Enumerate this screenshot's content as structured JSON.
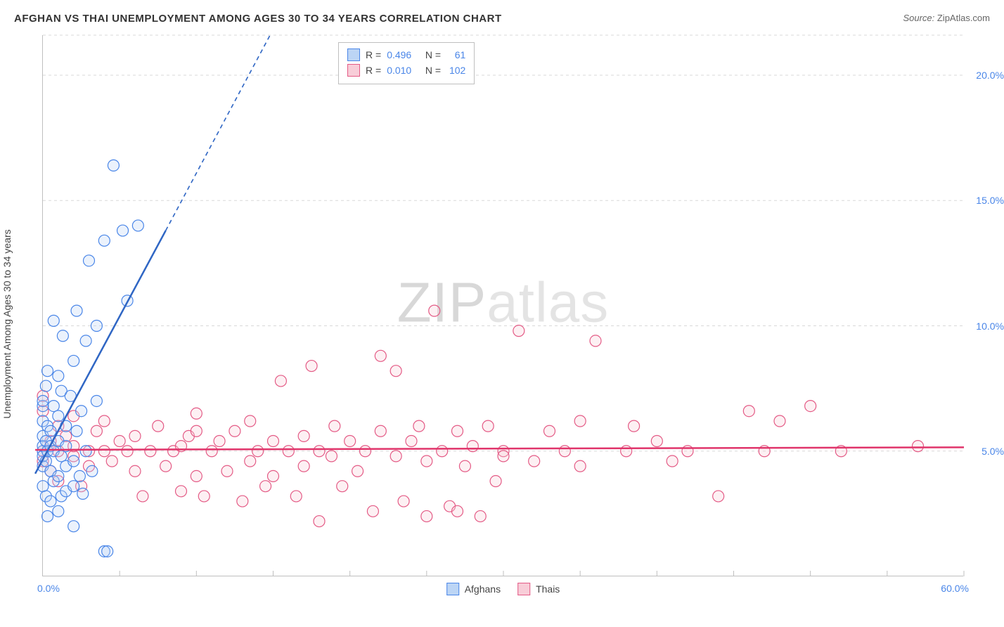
{
  "header": {
    "title": "AFGHAN VS THAI UNEMPLOYMENT AMONG AGES 30 TO 34 YEARS CORRELATION CHART",
    "source_prefix": "Source: ",
    "source_name": "ZipAtlas.com"
  },
  "watermark": {
    "zip": "ZIP",
    "atlas": "atlas"
  },
  "chart": {
    "type": "scatter",
    "ylabel": "Unemployment Among Ages 30 to 34 years",
    "background_color": "#ffffff",
    "axis_color": "#bfbfbf",
    "grid_color": "#d9d9d9",
    "grid_dash": "4 4",
    "tick_label_color": "#4a86e8",
    "xlim": [
      0,
      60
    ],
    "ylim": [
      0,
      21.6
    ],
    "x_ticks_minor_step": 5,
    "x_ticks_labels": [
      {
        "value": 0,
        "label": "0.0%"
      },
      {
        "value": 60,
        "label": "60.0%"
      }
    ],
    "y_gridlines": [
      5,
      10,
      15,
      20,
      21.6
    ],
    "y_ticks_labels": [
      {
        "value": 5,
        "label": "5.0%"
      },
      {
        "value": 10,
        "label": "10.0%"
      },
      {
        "value": 15,
        "label": "15.0%"
      },
      {
        "value": 20,
        "label": "20.0%"
      }
    ],
    "marker_radius": 8,
    "marker_stroke_width": 1.2,
    "marker_fill_opacity": 0.3,
    "trend_line_width": 2.5,
    "trend_dash": "6 5"
  },
  "stats_legend": {
    "rows": [
      {
        "swatch_fill": "#bcd5f5",
        "swatch_stroke": "#4a86e8",
        "r_label": "R = ",
        "r_value": "0.496",
        "n_label": "   N = ",
        "n_value": "  61"
      },
      {
        "swatch_fill": "#f8cdd8",
        "swatch_stroke": "#e45b86",
        "r_label": "R = ",
        "r_value": "0.010",
        "n_label": "   N = ",
        "n_value": "102"
      }
    ]
  },
  "series_legend": {
    "items": [
      {
        "swatch_fill": "#bcd5f5",
        "swatch_stroke": "#4a86e8",
        "label": "Afghans"
      },
      {
        "swatch_fill": "#f8cdd8",
        "swatch_stroke": "#e45b86",
        "label": "Thais"
      }
    ]
  },
  "series": {
    "afghans": {
      "fill": "#bcd5f5",
      "stroke": "#4a86e8",
      "trend_color": "#2f66c4",
      "trend_solid": {
        "x1": -0.5,
        "y1": 4.1,
        "x2": 8.0,
        "y2": 13.8
      },
      "trend_dash": {
        "x1": 8.0,
        "y1": 13.8,
        "x2": 14.8,
        "y2": 21.6
      },
      "points": [
        [
          0.0,
          5.0
        ],
        [
          0.0,
          5.6
        ],
        [
          0.0,
          6.8
        ],
        [
          0.0,
          4.4
        ],
        [
          0.0,
          5.2
        ],
        [
          0.0,
          6.2
        ],
        [
          0.0,
          7.0
        ],
        [
          0.0,
          4.8
        ],
        [
          0.0,
          3.6
        ],
        [
          0.2,
          7.6
        ],
        [
          0.2,
          5.4
        ],
        [
          0.2,
          4.6
        ],
        [
          0.2,
          3.2
        ],
        [
          0.3,
          6.0
        ],
        [
          0.3,
          8.2
        ],
        [
          0.3,
          5.0
        ],
        [
          0.3,
          2.4
        ],
        [
          0.5,
          5.8
        ],
        [
          0.5,
          5.2
        ],
        [
          0.5,
          4.2
        ],
        [
          0.5,
          3.0
        ],
        [
          0.7,
          10.2
        ],
        [
          0.7,
          6.8
        ],
        [
          0.7,
          3.8
        ],
        [
          0.7,
          5.0
        ],
        [
          1.0,
          8.0
        ],
        [
          1.0,
          6.4
        ],
        [
          1.0,
          5.4
        ],
        [
          1.0,
          4.0
        ],
        [
          1.0,
          2.6
        ],
        [
          1.2,
          7.4
        ],
        [
          1.2,
          3.2
        ],
        [
          1.2,
          4.8
        ],
        [
          1.3,
          9.6
        ],
        [
          1.5,
          6.0
        ],
        [
          1.5,
          5.2
        ],
        [
          1.5,
          3.4
        ],
        [
          1.5,
          4.4
        ],
        [
          1.8,
          7.2
        ],
        [
          2.0,
          8.6
        ],
        [
          2.0,
          4.6
        ],
        [
          2.0,
          3.6
        ],
        [
          2.0,
          2.0
        ],
        [
          2.2,
          5.8
        ],
        [
          2.2,
          10.6
        ],
        [
          2.4,
          4.0
        ],
        [
          2.5,
          6.6
        ],
        [
          2.6,
          3.3
        ],
        [
          2.8,
          9.4
        ],
        [
          2.8,
          5.0
        ],
        [
          3.0,
          12.6
        ],
        [
          3.2,
          4.2
        ],
        [
          3.5,
          10.0
        ],
        [
          3.5,
          7.0
        ],
        [
          4.0,
          13.4
        ],
        [
          4.0,
          1.0
        ],
        [
          4.2,
          1.0
        ],
        [
          4.6,
          16.4
        ],
        [
          5.2,
          13.8
        ],
        [
          5.5,
          11.0
        ],
        [
          6.2,
          14.0
        ]
      ]
    },
    "thais": {
      "fill": "#f8cdd8",
      "stroke": "#e45b86",
      "trend_color": "#e0356b",
      "trend_solid": {
        "x1": -0.5,
        "y1": 5.05,
        "x2": 60.0,
        "y2": 5.15
      },
      "points": [
        [
          0.0,
          5.0
        ],
        [
          0.0,
          6.6
        ],
        [
          0.0,
          4.6
        ],
        [
          0.0,
          7.2
        ],
        [
          0.5,
          5.4
        ],
        [
          0.5,
          4.2
        ],
        [
          1.0,
          6.0
        ],
        [
          1.0,
          5.0
        ],
        [
          1.0,
          3.8
        ],
        [
          1.5,
          5.6
        ],
        [
          2.0,
          6.4
        ],
        [
          2.0,
          4.8
        ],
        [
          2.0,
          5.2
        ],
        [
          2.5,
          3.6
        ],
        [
          3.0,
          5.0
        ],
        [
          3.0,
          4.4
        ],
        [
          3.5,
          5.8
        ],
        [
          4.0,
          5.0
        ],
        [
          4.0,
          6.2
        ],
        [
          4.5,
          4.6
        ],
        [
          5.0,
          5.4
        ],
        [
          5.5,
          5.0
        ],
        [
          6.0,
          4.2
        ],
        [
          6.0,
          5.6
        ],
        [
          6.5,
          3.2
        ],
        [
          7.0,
          5.0
        ],
        [
          7.5,
          6.0
        ],
        [
          8.0,
          4.4
        ],
        [
          8.5,
          5.0
        ],
        [
          9.0,
          5.2
        ],
        [
          9.0,
          3.4
        ],
        [
          9.5,
          5.6
        ],
        [
          10.0,
          4.0
        ],
        [
          10.0,
          6.5
        ],
        [
          10.0,
          5.8
        ],
        [
          10.5,
          3.2
        ],
        [
          11.0,
          5.0
        ],
        [
          11.5,
          5.4
        ],
        [
          12.0,
          4.2
        ],
        [
          12.5,
          5.8
        ],
        [
          13.0,
          3.0
        ],
        [
          13.5,
          6.2
        ],
        [
          13.5,
          4.6
        ],
        [
          14.0,
          5.0
        ],
        [
          14.5,
          3.6
        ],
        [
          15.0,
          5.4
        ],
        [
          15.0,
          4.0
        ],
        [
          15.5,
          7.8
        ],
        [
          16.0,
          5.0
        ],
        [
          16.5,
          3.2
        ],
        [
          17.0,
          5.6
        ],
        [
          17.0,
          4.4
        ],
        [
          17.5,
          8.4
        ],
        [
          18.0,
          5.0
        ],
        [
          18.0,
          2.2
        ],
        [
          18.8,
          4.8
        ],
        [
          19.0,
          6.0
        ],
        [
          19.5,
          3.6
        ],
        [
          20.0,
          5.4
        ],
        [
          20.5,
          4.2
        ],
        [
          21.0,
          5.0
        ],
        [
          21.5,
          2.6
        ],
        [
          22.0,
          5.8
        ],
        [
          22.0,
          8.8
        ],
        [
          23.0,
          4.8
        ],
        [
          23.0,
          8.2
        ],
        [
          23.5,
          3.0
        ],
        [
          24.0,
          5.4
        ],
        [
          24.5,
          6.0
        ],
        [
          25.0,
          4.6
        ],
        [
          25.0,
          2.4
        ],
        [
          25.5,
          10.6
        ],
        [
          26.0,
          5.0
        ],
        [
          26.5,
          2.8
        ],
        [
          27.0,
          5.8
        ],
        [
          27.0,
          2.6
        ],
        [
          27.5,
          4.4
        ],
        [
          28.0,
          5.2
        ],
        [
          28.5,
          2.4
        ],
        [
          29.0,
          6.0
        ],
        [
          29.5,
          3.8
        ],
        [
          30.0,
          5.0
        ],
        [
          30.0,
          4.8
        ],
        [
          31.0,
          9.8
        ],
        [
          32.0,
          4.6
        ],
        [
          33.0,
          5.8
        ],
        [
          34.0,
          5.0
        ],
        [
          35.0,
          6.2
        ],
        [
          35.0,
          4.4
        ],
        [
          36.0,
          9.4
        ],
        [
          38.0,
          5.0
        ],
        [
          38.5,
          6.0
        ],
        [
          40.0,
          5.4
        ],
        [
          41.0,
          4.6
        ],
        [
          42.0,
          5.0
        ],
        [
          44.0,
          3.2
        ],
        [
          46.0,
          6.6
        ],
        [
          47.0,
          5.0
        ],
        [
          48.0,
          6.2
        ],
        [
          50.0,
          6.8
        ],
        [
          52.0,
          5.0
        ],
        [
          57.0,
          5.2
        ]
      ]
    }
  }
}
